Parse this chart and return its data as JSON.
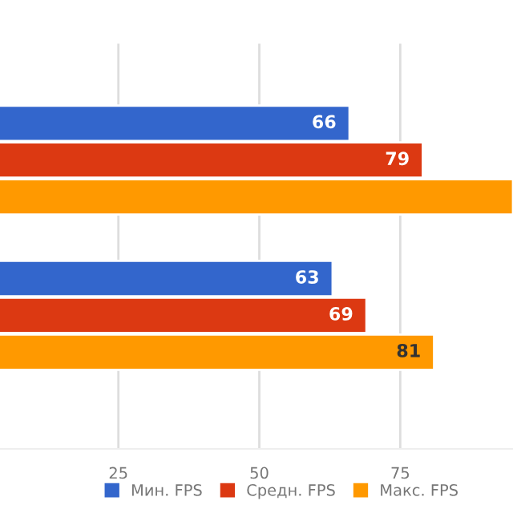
{
  "chart_data": {
    "type": "bar",
    "orientation": "horizontal",
    "categories": [
      null,
      null
    ],
    "series": [
      {
        "name": "Мин. FPS",
        "color": "#3366cc",
        "values": [
          66,
          63
        ],
        "value_labels": [
          "66",
          "63"
        ]
      },
      {
        "name": "Средн. FPS",
        "color": "#dc3912",
        "values": [
          79,
          69
        ],
        "value_labels": [
          "79",
          "69"
        ]
      },
      {
        "name": "Макс. FPS",
        "color": "#ff9900",
        "values": [
          95,
          81
        ],
        "value_labels": [
          null,
          "81"
        ]
      }
    ],
    "xlim": [
      4,
      95
    ],
    "xticks": [
      25,
      50,
      75
    ],
    "grid": "x",
    "legend": "bottom"
  }
}
